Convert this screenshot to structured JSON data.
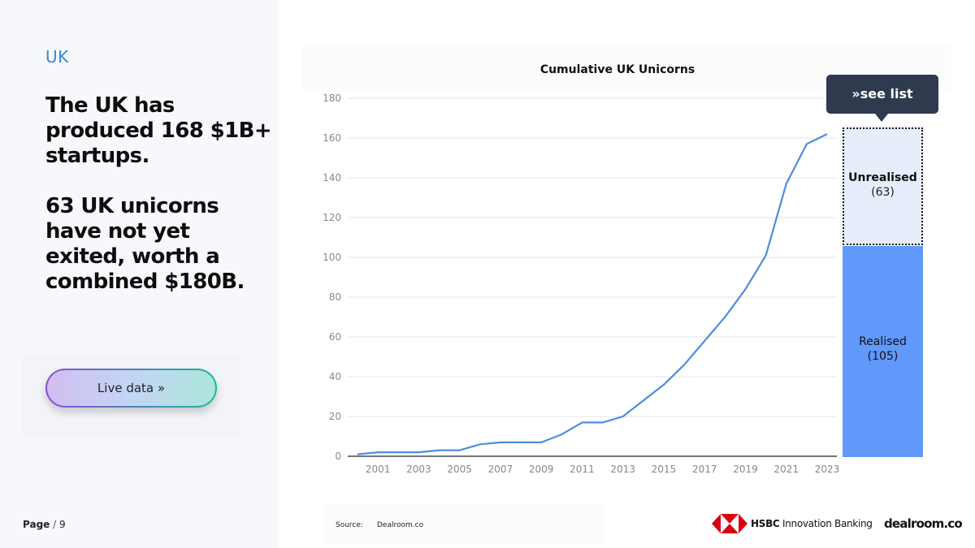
{
  "left": {
    "region": "UK",
    "headline_1": "The UK has produced 168 $1B+ startups.",
    "headline_2": "63 UK unicorns have not yet exited, worth a combined $180B.",
    "live_button": "Live data »"
  },
  "footer": {
    "page_label": "Page",
    "page_sep": "/",
    "page_number": "9",
    "source_label": "Source:",
    "source_value": "Dealroom.co",
    "hsbc_brand": "HSBC",
    "hsbc_product": "Innovation Banking",
    "dealroom_brand": "dealroom.co"
  },
  "side_panel": {
    "see_list": "»see list",
    "unrealised_label": "Unrealised",
    "unrealised_value": "(63)",
    "realised_label": "Realised",
    "realised_value": "(105)",
    "colors": {
      "unrealised": "#e6edfb",
      "realised": "#6199fa",
      "button": "#2f3a4f"
    }
  },
  "chart_data": {
    "type": "line",
    "title": "Cumulative UK Unicorns",
    "xlabel": "",
    "ylabel": "",
    "ylim": [
      0,
      180
    ],
    "yticks": [
      0,
      20,
      40,
      60,
      80,
      100,
      120,
      140,
      160,
      180
    ],
    "xticks": [
      "2001",
      "2003",
      "2005",
      "2007",
      "2009",
      "2011",
      "2013",
      "2015",
      "2017",
      "2019",
      "2021",
      "2023"
    ],
    "grid": true,
    "color": "#4a8ee0",
    "series": [
      {
        "x": [
          2000,
          2001,
          2002,
          2003,
          2004,
          2005,
          2006,
          2007,
          2008,
          2009,
          2010,
          2011,
          2012,
          2013,
          2014,
          2015,
          2016,
          2017,
          2018,
          2019,
          2020,
          2021,
          2022,
          2023
        ],
        "values": [
          1,
          2,
          2,
          2,
          3,
          3,
          6,
          7,
          7,
          7,
          11,
          17,
          17,
          20,
          28,
          36,
          46,
          58,
          70,
          84,
          101,
          137,
          157,
          162
        ]
      }
    ]
  }
}
